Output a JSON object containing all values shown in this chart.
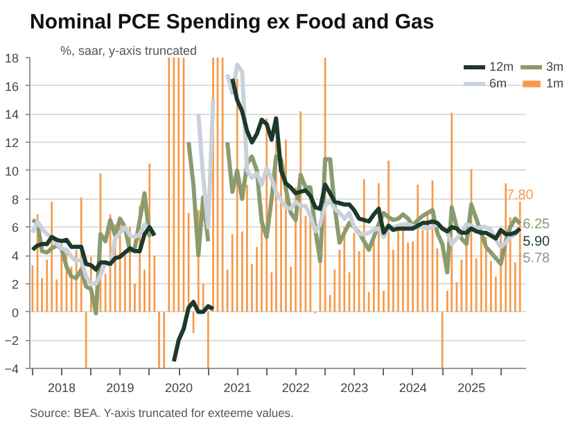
{
  "chart_data": {
    "type": "line",
    "title": "Nominal PCE Spending ex Food and Gas",
    "subtitle": "%, saar, y-axis truncated",
    "annotations": [
      "Source: BEA. Y-axis truncated for exteeme values."
    ],
    "x": [
      "2018-01",
      "2018-02",
      "2018-03",
      "2018-04",
      "2018-05",
      "2018-06",
      "2018-07",
      "2018-08",
      "2018-09",
      "2018-10",
      "2018-11",
      "2018-12",
      "2019-01",
      "2019-02",
      "2019-03",
      "2019-04",
      "2019-05",
      "2019-06",
      "2019-07",
      "2019-08",
      "2019-09",
      "2019-10",
      "2019-11",
      "2019-12",
      "2020-01",
      "2020-02",
      "2020-03",
      "2020-04",
      "2020-05",
      "2020-06",
      "2020-07",
      "2020-08",
      "2020-09",
      "2020-10",
      "2020-11",
      "2020-12",
      "2021-01",
      "2021-02",
      "2021-03",
      "2021-04",
      "2021-05",
      "2021-06",
      "2021-07",
      "2021-08",
      "2021-09",
      "2021-10",
      "2021-11",
      "2021-12",
      "2022-01",
      "2022-02",
      "2022-03",
      "2022-04",
      "2022-05",
      "2022-06",
      "2022-07",
      "2022-08",
      "2022-09",
      "2022-10",
      "2022-11",
      "2022-12",
      "2023-01",
      "2023-02",
      "2023-03",
      "2023-04",
      "2023-05",
      "2023-06",
      "2023-07",
      "2023-08",
      "2023-09",
      "2023-10",
      "2023-11",
      "2023-12",
      "2024-01",
      "2024-02",
      "2024-03",
      "2024-04",
      "2024-05",
      "2024-06",
      "2024-07",
      "2024-08",
      "2024-09",
      "2024-10",
      "2024-11",
      "2024-12",
      "2025-01",
      "2025-02",
      "2025-03",
      "2025-04",
      "2025-05",
      "2025-06",
      "2025-07",
      "2025-08",
      "2025-09",
      "2025-10",
      "2025-11",
      "2025-12",
      "2026-01",
      "2026-02",
      "2026-03",
      "2026-04",
      "2026-05"
    ],
    "series": [
      {
        "name": "12m",
        "color": "#1b3a2c",
        "values": [
          4.4,
          4.7,
          4.8,
          4.8,
          5.3,
          5.1,
          5.0,
          5.1,
          4.6,
          4.6,
          4.6,
          3.4,
          3.3,
          3.0,
          3.5,
          3.5,
          3.4,
          3.8,
          3.9,
          4.2,
          4.5,
          4.3,
          4.3,
          5.5,
          6.0,
          5.4,
          null,
          null,
          null,
          -3.5,
          -2.0,
          -1.2,
          0.3,
          0.7,
          0.0,
          0.0,
          0.4,
          0.2,
          null,
          null,
          null,
          16.5,
          15.0,
          14.2,
          12.8,
          12.0,
          12.6,
          13.6,
          13.3,
          12.2,
          13.7,
          10.0,
          9.1,
          8.8,
          8.4,
          8.5,
          8.6,
          8.2,
          7.4,
          7.3,
          9.0,
          8.4,
          7.8,
          7.7,
          7.6,
          7.6,
          7.2,
          6.6,
          6.5,
          6.4,
          6.9,
          7.3,
          5.6,
          6.1,
          5.8,
          5.9,
          5.9,
          5.9,
          5.9,
          6.1,
          6.3,
          6.3,
          6.4,
          6.3,
          5.9,
          5.7,
          6.0,
          5.9,
          5.6,
          5.6,
          5.9,
          5.7,
          5.6,
          5.6,
          5.4,
          5.2,
          5.8,
          5.5,
          5.5,
          5.6,
          5.9
        ],
        "value_labels": [
          null,
          null,
          null,
          null,
          null,
          null,
          null,
          null,
          null,
          null,
          null,
          null,
          null,
          null,
          null,
          null,
          null,
          null,
          null,
          null,
          null,
          null,
          null,
          null,
          null,
          null,
          null,
          null,
          null,
          null,
          null,
          null,
          null,
          null,
          null,
          null,
          null,
          null,
          null,
          null,
          null,
          null,
          null,
          null,
          null,
          null,
          null,
          null,
          null,
          null,
          null,
          null,
          null,
          null,
          null,
          null,
          null,
          null,
          null,
          null,
          null,
          null,
          null,
          null,
          null,
          null,
          null,
          null,
          null,
          null,
          null,
          null,
          null,
          null,
          null,
          null,
          null,
          null,
          null,
          null,
          null,
          null,
          null,
          null,
          null,
          null,
          null,
          null,
          null,
          null,
          null,
          null,
          null,
          null,
          null,
          null,
          null,
          null,
          null,
          null,
          "5.90"
        ]
      },
      {
        "name": "6m",
        "color": "#c9d1da",
        "values": [
          5.6,
          6.4,
          5.9,
          5.5,
          5.3,
          4.8,
          4.5,
          4.4,
          3.9,
          3.6,
          3.7,
          2.5,
          2.0,
          2.0,
          2.6,
          3.5,
          3.3,
          5.2,
          5.6,
          6.0,
          5.4,
          5.3,
          5.5,
          6.2,
          5.8,
          5.6,
          null,
          null,
          null,
          null,
          null,
          null,
          null,
          null,
          14.0,
          9.5,
          6.0,
          15.0,
          null,
          null,
          16.8,
          15.5,
          17.5,
          17.0,
          10.0,
          9.5,
          9.8,
          9.0,
          10.2,
          9.4,
          8.5,
          7.9,
          7.4,
          7.3,
          7.8,
          7.5,
          7.5,
          6.8,
          5.7,
          6.2,
          7.5,
          7.9,
          7.3,
          7.0,
          6.6,
          7.0,
          6.0,
          5.5,
          5.5,
          5.6,
          5.8,
          5.9,
          5.3,
          5.9,
          6.0,
          6.1,
          6.2,
          6.2,
          6.1,
          6.0,
          6.0,
          5.9,
          6.0,
          6.2,
          6.0,
          5.6,
          4.8,
          5.2,
          5.6,
          6.2,
          6.1,
          5.9,
          6.0,
          6.0,
          5.8,
          5.1,
          4.6,
          4.9,
          5.3,
          5.5,
          5.78
        ],
        "value_labels": [
          null,
          null,
          null,
          null,
          null,
          null,
          null,
          null,
          null,
          null,
          null,
          null,
          null,
          null,
          null,
          null,
          null,
          null,
          null,
          null,
          null,
          null,
          null,
          null,
          null,
          null,
          null,
          null,
          null,
          null,
          null,
          null,
          null,
          null,
          null,
          null,
          null,
          null,
          null,
          null,
          null,
          null,
          null,
          null,
          null,
          null,
          null,
          null,
          null,
          null,
          null,
          null,
          null,
          null,
          null,
          null,
          null,
          null,
          null,
          null,
          null,
          null,
          null,
          null,
          null,
          null,
          null,
          null,
          null,
          null,
          null,
          null,
          null,
          null,
          null,
          null,
          null,
          null,
          null,
          null,
          null,
          null,
          null,
          null,
          null,
          null,
          null,
          null,
          null,
          null,
          null,
          null,
          null,
          null,
          null,
          null,
          null,
          null,
          null,
          null,
          "5.78"
        ]
      },
      {
        "name": "3m",
        "color": "#8a9b6e",
        "values": [
          6.5,
          6.3,
          4.3,
          4.2,
          4.5,
          4.7,
          4.5,
          3.2,
          2.5,
          2.4,
          3.0,
          1.8,
          1.6,
          -0.1,
          5.5,
          5.0,
          6.5,
          5.4,
          6.6,
          6.0,
          4.3,
          4.5,
          6.5,
          8.4,
          5.3,
          null,
          null,
          null,
          null,
          null,
          null,
          null,
          12.0,
          9.0,
          4.0,
          8.1,
          5.0,
          null,
          null,
          null,
          12.0,
          8.5,
          10.0,
          8.0,
          10.5,
          11.0,
          10.0,
          6.4,
          5.3,
          8.0,
          11.0,
          10.8,
          8.7,
          7.0,
          6.5,
          9.7,
          8.8,
          8.8,
          5.8,
          3.6,
          10.8,
          10.8,
          7.5,
          4.9,
          5.6,
          6.3,
          6.0,
          5.6,
          5.0,
          4.4,
          5.3,
          6.2,
          7.0,
          6.7,
          6.5,
          6.6,
          6.9,
          6.6,
          6.1,
          6.5,
          6.8,
          7.0,
          7.2,
          5.6,
          4.8,
          2.8,
          7.4,
          6.0,
          5.2,
          4.8,
          7.6,
          6.6,
          5.6,
          4.6,
          4.2,
          3.8,
          3.4,
          5.0,
          6.0,
          6.6,
          6.25
        ],
        "value_labels": [
          null,
          null,
          null,
          null,
          null,
          null,
          null,
          null,
          null,
          null,
          null,
          null,
          null,
          null,
          null,
          null,
          null,
          null,
          null,
          null,
          null,
          null,
          null,
          null,
          null,
          null,
          null,
          null,
          null,
          null,
          null,
          null,
          null,
          null,
          null,
          null,
          null,
          null,
          null,
          null,
          null,
          null,
          null,
          null,
          null,
          null,
          null,
          null,
          null,
          null,
          null,
          null,
          null,
          null,
          null,
          null,
          null,
          null,
          null,
          null,
          null,
          null,
          null,
          null,
          null,
          null,
          null,
          null,
          null,
          null,
          null,
          null,
          null,
          null,
          null,
          null,
          null,
          null,
          null,
          null,
          null,
          null,
          null,
          null,
          null,
          null,
          null,
          null,
          null,
          null,
          null,
          null,
          null,
          null,
          null,
          null,
          null,
          null,
          null,
          null,
          "6.25"
        ]
      },
      {
        "name": "1m",
        "type": "bar",
        "color": "#f79b4b",
        "values": [
          3.3,
          6.9,
          2.4,
          3.7,
          7.8,
          2.3,
          4.8,
          4.5,
          3.2,
          4.4,
          8.1,
          -4,
          3.9,
          null,
          9.8,
          2.7,
          6.9,
          6.2,
          6.5,
          4.0,
          6.0,
          2.0,
          7.5,
          3.0,
          10.5,
          4.0,
          -4,
          -4,
          18,
          18,
          18,
          18,
          7.0,
          -1.5,
          7.2,
          2.0,
          -4,
          18,
          18,
          18,
          3.0,
          5.5,
          16.5,
          5.7,
          9.0,
          3.4,
          4.6,
          7.6,
          13.7,
          2.8,
          12.1,
          10.0,
          12.2,
          3.2,
          8.8,
          14.2,
          6.8,
          6.5,
          -0.1,
          3.5,
          18,
          1.2,
          3.0,
          4.4,
          6.0,
          2.8,
          5.6,
          4.3,
          9.4,
          1.4,
          5.0,
          9.1,
          1.5,
          10.7,
          4.4,
          6.0,
          5.8,
          4.9,
          5.0,
          9.0,
          5.8,
          7.0,
          9.3,
          4.5,
          -4,
          1.5,
          14.1,
          2.1,
          3.7,
          5.5,
          10.1,
          3.8,
          5.3,
          5.3,
          3.6,
          2.5,
          5.6,
          9.1,
          6.7,
          3.5,
          7.8
        ],
        "value_labels": [
          null,
          null,
          null,
          null,
          null,
          null,
          null,
          null,
          null,
          null,
          null,
          null,
          null,
          null,
          null,
          null,
          null,
          null,
          null,
          null,
          null,
          null,
          null,
          null,
          null,
          null,
          null,
          null,
          null,
          null,
          null,
          null,
          null,
          null,
          null,
          null,
          null,
          null,
          null,
          null,
          null,
          null,
          null,
          null,
          null,
          null,
          null,
          null,
          null,
          null,
          null,
          null,
          null,
          null,
          null,
          null,
          null,
          null,
          null,
          null,
          null,
          null,
          null,
          null,
          null,
          null,
          null,
          null,
          null,
          null,
          null,
          null,
          null,
          null,
          null,
          null,
          null,
          null,
          null,
          null,
          null,
          null,
          null,
          null,
          null,
          null,
          null,
          null,
          null,
          null,
          null,
          null,
          null,
          null,
          null,
          null,
          null,
          null,
          null,
          null,
          "7.80"
        ]
      }
    ],
    "xlim": [
      "2017-12-15",
      "2026-06-05"
    ],
    "xticks": [
      {
        "value": "2018-01-01",
        "label": null
      },
      {
        "value": "2018-07-02",
        "label": "2018"
      },
      {
        "value": "2019-01-01",
        "label": null
      },
      {
        "value": "2019-07-02",
        "label": "2019"
      },
      {
        "value": "2020-01-01",
        "label": null
      },
      {
        "value": "2020-07-02",
        "label": "2020"
      },
      {
        "value": "2021-01-01",
        "label": null
      },
      {
        "value": "2021-07-02",
        "label": "2021"
      },
      {
        "value": "2022-01-01",
        "label": null
      },
      {
        "value": "2022-07-02",
        "label": "2022"
      },
      {
        "value": "2023-01-01",
        "label": null
      },
      {
        "value": "2023-07-02",
        "label": "2023"
      },
      {
        "value": "2024-01-01",
        "label": null
      },
      {
        "value": "2024-07-02",
        "label": "2024"
      },
      {
        "value": "2025-01-01",
        "label": null
      },
      {
        "value": "2025-07-02",
        "label": "2025"
      },
      {
        "value": "2026-01-01",
        "label": null
      }
    ],
    "ylim": [
      -4,
      18
    ],
    "yticks": [
      -4,
      -2,
      0,
      2,
      4,
      6,
      8,
      10,
      12,
      14,
      16,
      18
    ],
    "grid": "y",
    "legend": "top right",
    "marker": "none",
    "line_style": "solid"
  }
}
